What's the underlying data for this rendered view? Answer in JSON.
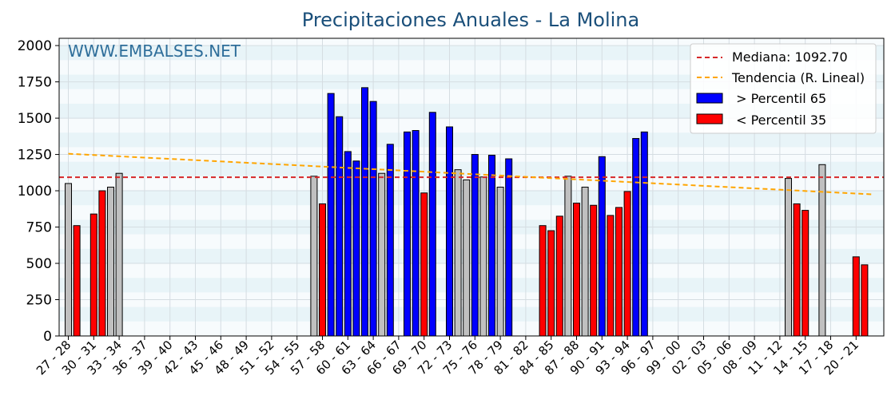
{
  "chart_data": {
    "type": "bar",
    "title": "Precipitaciones Anuales - La Molina",
    "watermark": "WWW.EMBALSES.NET",
    "xlabel": "",
    "ylabel": "",
    "ylim": [
      0,
      2050
    ],
    "yticks": [
      0,
      250,
      500,
      750,
      1000,
      1250,
      1500,
      1750,
      2000
    ],
    "xtick_labels": [
      "27 - 28",
      "30 - 31",
      "33 - 34",
      "36 - 37",
      "39 - 40",
      "42 - 43",
      "45 - 46",
      "48 - 49",
      "51 - 52",
      "54 - 55",
      "57 - 58",
      "60 - 61",
      "63 - 64",
      "66 - 67",
      "69 - 70",
      "72 - 73",
      "75 - 76",
      "78 - 79",
      "81 - 82",
      "84 - 85",
      "87 - 88",
      "90 - 91",
      "93 - 94",
      "96 - 97",
      "99 - 00",
      "02 - 03",
      "05 - 06",
      "08 - 09",
      "11 - 12",
      "14 - 15",
      "17 - 18",
      "20 - 21"
    ],
    "start_year": 1927,
    "end_year": 2021,
    "median": {
      "label": "Mediana: 1092.70",
      "value": 1092.7,
      "color": "#d62728"
    },
    "trend": {
      "label": "Tendencia (R. Lineal)",
      "start": 1255,
      "end": 975,
      "color": "#ffa500"
    },
    "legend": {
      "position": "top-right",
      "entries": [
        {
          "label": " > Percentil 65",
          "color": "#0000ff"
        },
        {
          "label": " < Percentil 35",
          "color": "#ff0000"
        }
      ]
    },
    "colors": {
      "high": "#0000ff",
      "low": "#ff0000",
      "mid": "#c0c0c0"
    },
    "grid": true,
    "bars": [
      {
        "season": "27 - 28",
        "value": 1050,
        "cat": "mid"
      },
      {
        "season": "28 - 29",
        "value": 760,
        "cat": "low"
      },
      {
        "season": "30 - 31",
        "value": 840,
        "cat": "low"
      },
      {
        "season": "31 - 32",
        "value": 1000,
        "cat": "low"
      },
      {
        "season": "32 - 33",
        "value": 1025,
        "cat": "mid"
      },
      {
        "season": "33 - 34",
        "value": 1120,
        "cat": "mid"
      },
      {
        "season": "56 - 57",
        "value": 1100,
        "cat": "mid"
      },
      {
        "season": "57 - 58",
        "value": 910,
        "cat": "low"
      },
      {
        "season": "58 - 59",
        "value": 1670,
        "cat": "high"
      },
      {
        "season": "59 - 60",
        "value": 1510,
        "cat": "high"
      },
      {
        "season": "60 - 61",
        "value": 1270,
        "cat": "high"
      },
      {
        "season": "61 - 62",
        "value": 1205,
        "cat": "high"
      },
      {
        "season": "62 - 63",
        "value": 1710,
        "cat": "high"
      },
      {
        "season": "63 - 64",
        "value": 1615,
        "cat": "high"
      },
      {
        "season": "64 - 65",
        "value": 1120,
        "cat": "mid"
      },
      {
        "season": "65 - 66",
        "value": 1320,
        "cat": "high"
      },
      {
        "season": "67 - 68",
        "value": 1405,
        "cat": "high"
      },
      {
        "season": "68 - 69",
        "value": 1415,
        "cat": "high"
      },
      {
        "season": "69 - 70",
        "value": 985,
        "cat": "low"
      },
      {
        "season": "70 - 71",
        "value": 1540,
        "cat": "high"
      },
      {
        "season": "72 - 73",
        "value": 1440,
        "cat": "high"
      },
      {
        "season": "73 - 74",
        "value": 1145,
        "cat": "mid"
      },
      {
        "season": "74 - 75",
        "value": 1075,
        "cat": "mid"
      },
      {
        "season": "75 - 76",
        "value": 1250,
        "cat": "high"
      },
      {
        "season": "76 - 77",
        "value": 1095,
        "cat": "mid"
      },
      {
        "season": "77 - 78",
        "value": 1245,
        "cat": "high"
      },
      {
        "season": "78 - 79",
        "value": 1025,
        "cat": "mid"
      },
      {
        "season": "79 - 80",
        "value": 1220,
        "cat": "high"
      },
      {
        "season": "83 - 84",
        "value": 760,
        "cat": "low"
      },
      {
        "season": "84 - 85",
        "value": 725,
        "cat": "low"
      },
      {
        "season": "85 - 86",
        "value": 825,
        "cat": "low"
      },
      {
        "season": "86 - 87",
        "value": 1100,
        "cat": "mid"
      },
      {
        "season": "87 - 88",
        "value": 915,
        "cat": "low"
      },
      {
        "season": "88 - 89",
        "value": 1025,
        "cat": "mid"
      },
      {
        "season": "89 - 90",
        "value": 900,
        "cat": "low"
      },
      {
        "season": "90 - 91",
        "value": 1235,
        "cat": "high"
      },
      {
        "season": "91 - 92",
        "value": 830,
        "cat": "low"
      },
      {
        "season": "92 - 93",
        "value": 885,
        "cat": "low"
      },
      {
        "season": "93 - 94",
        "value": 995,
        "cat": "low"
      },
      {
        "season": "94 - 95",
        "value": 1360,
        "cat": "high"
      },
      {
        "season": "95 - 96",
        "value": 1405,
        "cat": "high"
      },
      {
        "season": "12 - 13",
        "value": 1085,
        "cat": "mid"
      },
      {
        "season": "13 - 14",
        "value": 910,
        "cat": "low"
      },
      {
        "season": "14 - 15",
        "value": 865,
        "cat": "low"
      },
      {
        "season": "16 - 17",
        "value": 1180,
        "cat": "mid"
      },
      {
        "season": "20 - 21",
        "value": 545,
        "cat": "low"
      },
      {
        "season": "21 - 22",
        "value": 490,
        "cat": "low"
      }
    ]
  }
}
